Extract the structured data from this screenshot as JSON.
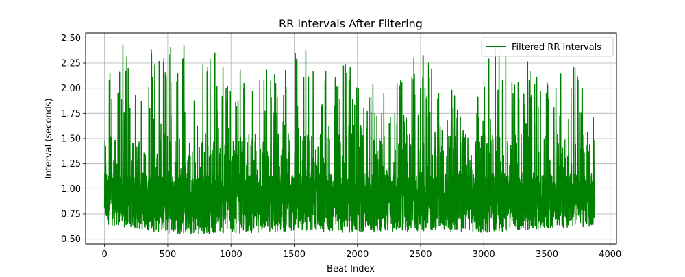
{
  "chart_data": {
    "type": "line",
    "title": "RR Intervals After Filtering",
    "xlabel": "Beat Index",
    "ylabel": "Interval (seconds)",
    "xlim": [
      -150,
      4050
    ],
    "ylim": [
      0.45,
      2.55
    ],
    "x_ticks": [
      0,
      500,
      1000,
      1500,
      2000,
      2500,
      3000,
      3500,
      4000
    ],
    "x_tick_labels": [
      "0",
      "500",
      "1000",
      "1500",
      "2000",
      "2500",
      "3000",
      "3500",
      "4000"
    ],
    "y_ticks": [
      0.5,
      0.75,
      1.0,
      1.25,
      1.5,
      1.75,
      2.0,
      2.25,
      2.5
    ],
    "y_tick_labels": [
      "0.50",
      "0.75",
      "1.00",
      "1.25",
      "1.50",
      "1.75",
      "2.00",
      "2.25",
      "2.50"
    ],
    "grid": true,
    "legend_position": "top-right",
    "series": [
      {
        "name": "Filtered RR Intervals",
        "color": "#008000",
        "n_points": 3880,
        "envelope_low": [
          [
            0,
            0.65
          ],
          [
            500,
            0.55
          ],
          [
            1000,
            0.55
          ],
          [
            1500,
            0.58
          ],
          [
            2000,
            0.56
          ],
          [
            2500,
            0.58
          ],
          [
            3000,
            0.56
          ],
          [
            3500,
            0.6
          ],
          [
            3880,
            0.62
          ]
        ],
        "envelope_high": [
          [
            0,
            2.2
          ],
          [
            20,
            2.44
          ],
          [
            200,
            2.44
          ],
          [
            500,
            2.46
          ],
          [
            560,
            2.48
          ],
          [
            750,
            2.47
          ],
          [
            1000,
            2.25
          ],
          [
            1200,
            2.15
          ],
          [
            1400,
            2.4
          ],
          [
            1650,
            2.44
          ],
          [
            1800,
            2.4
          ],
          [
            2000,
            2.27
          ],
          [
            2200,
            2.0
          ],
          [
            2500,
            2.37
          ],
          [
            2800,
            1.9
          ],
          [
            3000,
            2.0
          ],
          [
            3050,
            2.43
          ],
          [
            3200,
            2.44
          ],
          [
            3500,
            2.2
          ],
          [
            3700,
            2.28
          ],
          [
            3880,
            1.86
          ]
        ]
      }
    ]
  }
}
